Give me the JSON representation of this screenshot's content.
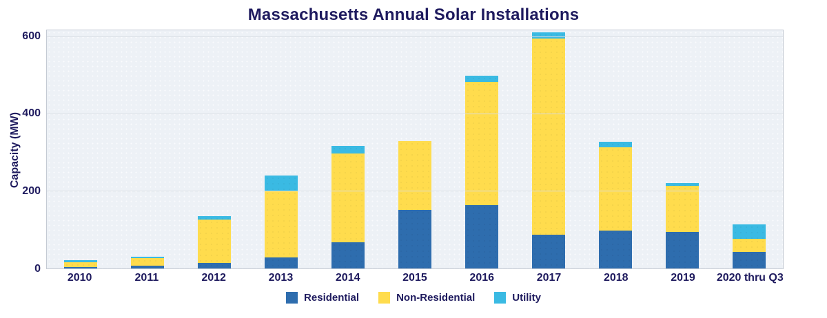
{
  "chart_data": {
    "type": "bar",
    "stacked": true,
    "title": "Massachusetts Annual Solar Installations",
    "xlabel": "",
    "ylabel": "Capacity (MW)",
    "ylim": [
      0,
      617
    ],
    "yticks": [
      0,
      200,
      400,
      600
    ],
    "grid": true,
    "legend_position": "bottom",
    "categories": [
      "2010",
      "2011",
      "2012",
      "2013",
      "2014",
      "2015",
      "2016",
      "2017",
      "2018",
      "2019",
      "2020 thru Q3"
    ],
    "series": [
      {
        "name": "Residential",
        "color": "#2E6DAE",
        "values": [
          3,
          7,
          15,
          29,
          67,
          151,
          164,
          87,
          98,
          94,
          42
        ]
      },
      {
        "name": "Non-Residential",
        "color": "#FFDC4D",
        "values": [
          13,
          19,
          111,
          172,
          231,
          179,
          319,
          508,
          216,
          120,
          34
        ]
      },
      {
        "name": "Utility",
        "color": "#3ABAE3",
        "values": [
          5,
          5,
          9,
          40,
          20,
          0,
          16,
          16,
          14,
          7,
          38
        ]
      }
    ],
    "totals": [
      21,
      31,
      135,
      241,
      318,
      330,
      499,
      611,
      328,
      221,
      114
    ],
    "colors": {
      "text": "#1E1A5E",
      "plot_background": "#EDF1F6",
      "gridline": "#D8DDE3"
    }
  }
}
